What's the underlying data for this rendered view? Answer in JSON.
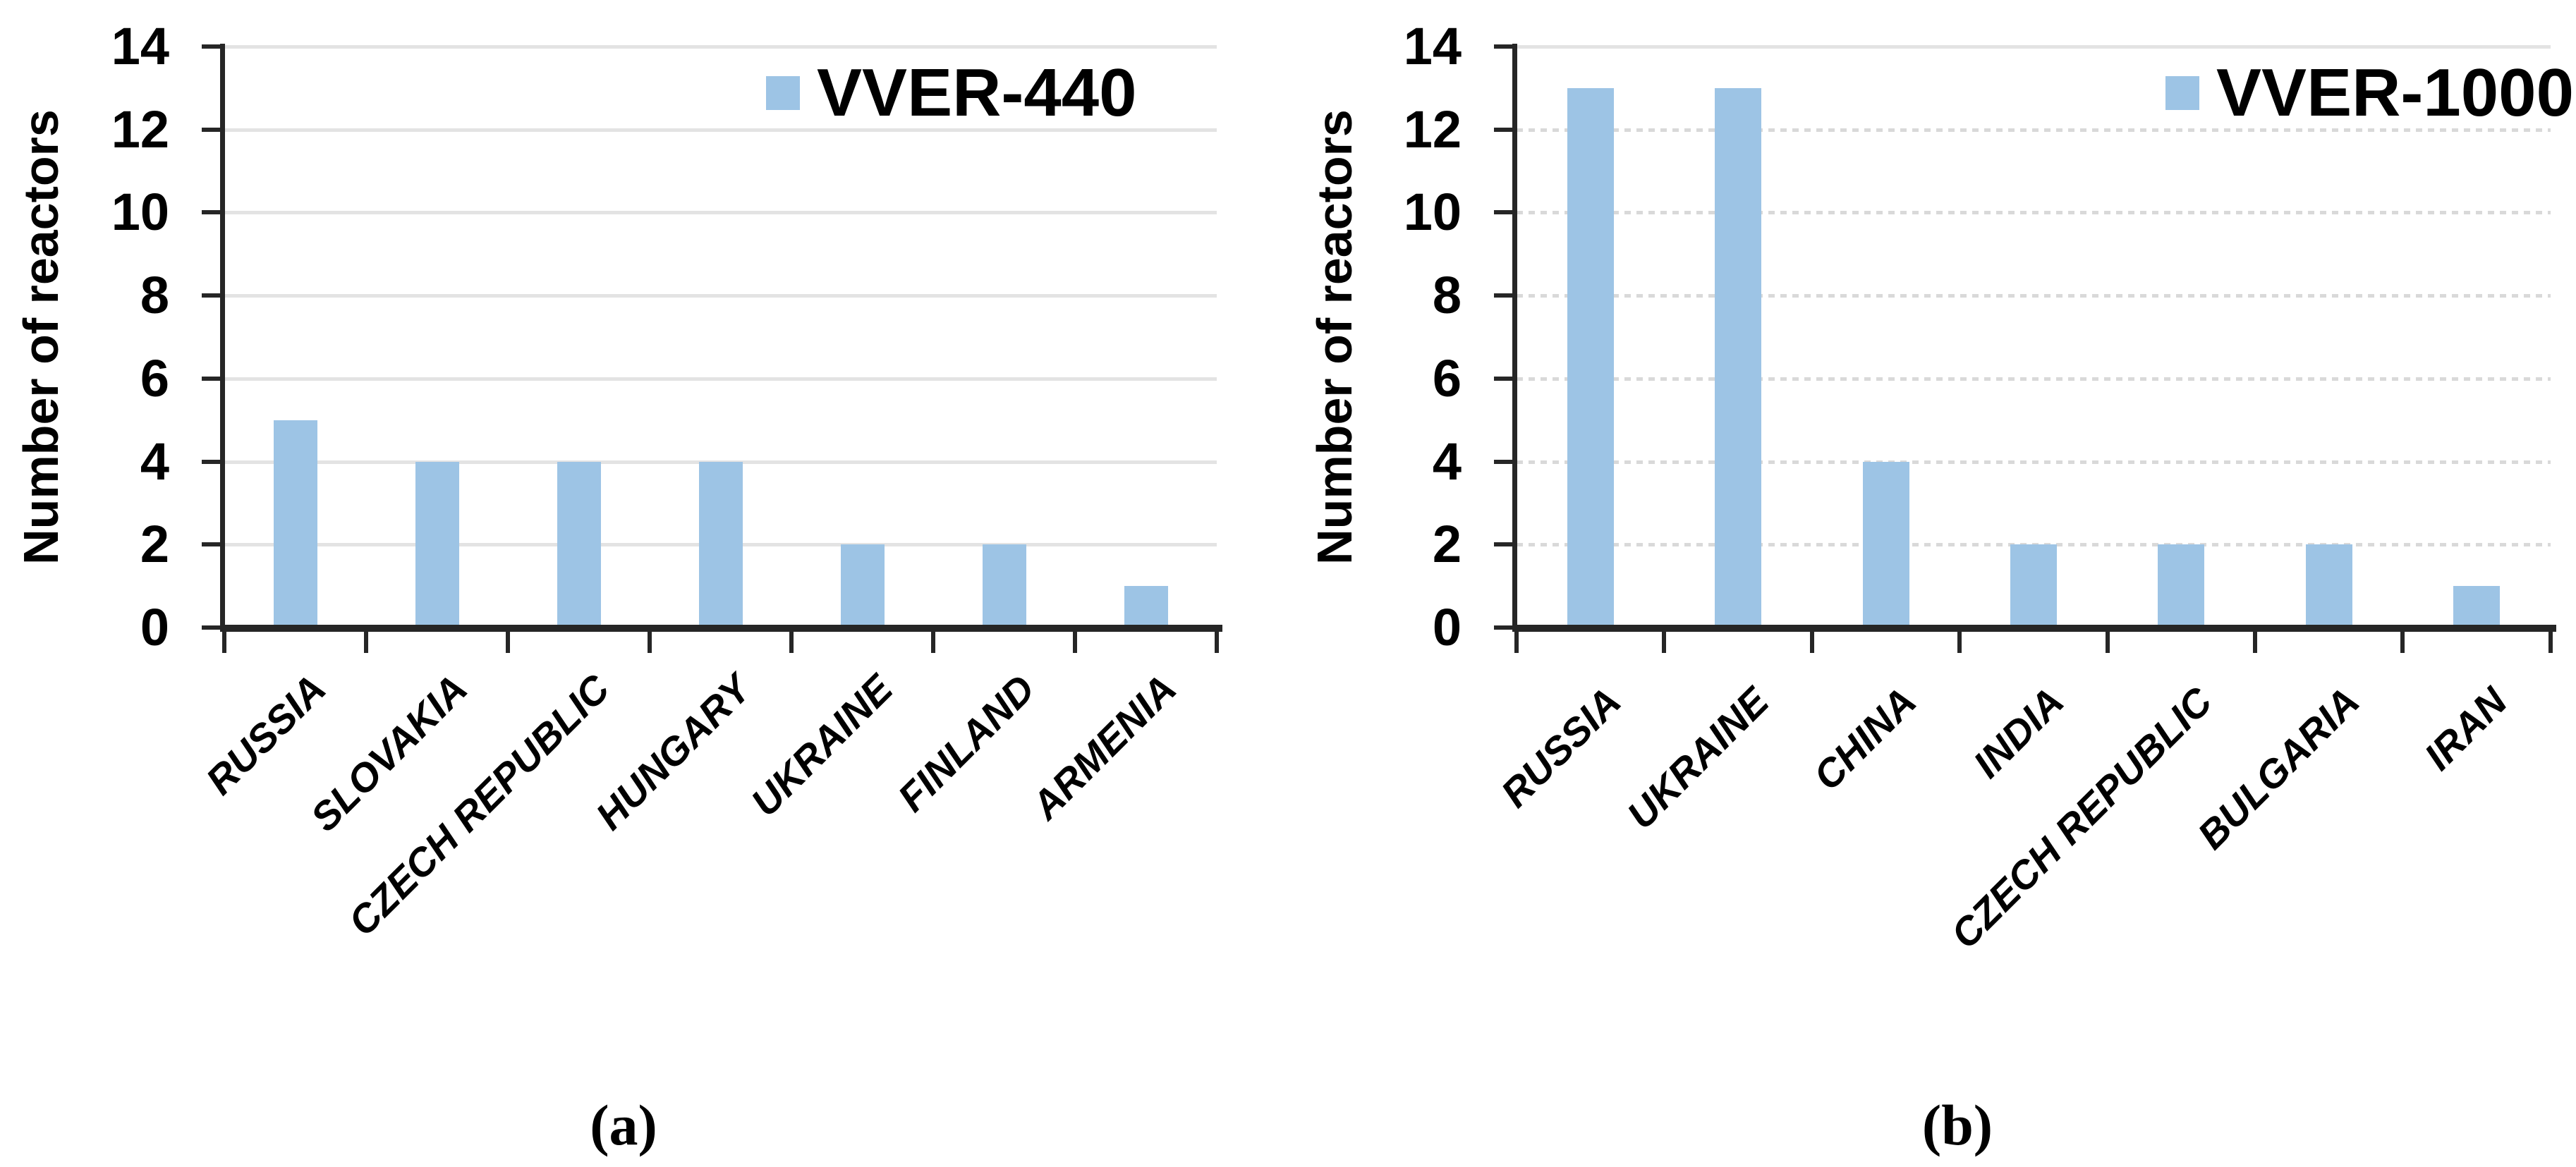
{
  "figure": {
    "panel_labels": {
      "a": "(a)",
      "b": "(b)"
    }
  },
  "colors": {
    "bar_fill": "#9DC4E5",
    "axis_line": "#262626",
    "grid_line": "#E3E3E3",
    "label_text": "#000000"
  },
  "chart_data": [
    {
      "panel": "a",
      "type": "bar",
      "legend": "VVER-440",
      "ylabel": "Number of reactors",
      "categories": [
        "RUSSIA",
        "SLOVAKIA",
        "CZECH REPUBLIC",
        "HUNGARY",
        "UKRAINE",
        "FINLAND",
        "ARMENIA"
      ],
      "values": [
        5,
        4,
        4,
        4,
        2,
        2,
        1
      ],
      "ylim": [
        0,
        14
      ],
      "ytick_step": 2,
      "yticks": [
        0,
        2,
        4,
        6,
        8,
        10,
        12,
        14
      ],
      "grid_style": "solid",
      "grid_on": true,
      "legend_position": "top-right",
      "bar_color": "#9DC4E5"
    },
    {
      "panel": "b",
      "type": "bar",
      "legend": "VVER-1000",
      "ylabel": "Number of reactors",
      "categories": [
        "RUSSIA",
        "UKRAINE",
        "CHINA",
        "INDIA",
        "CZECH REPUBLIC",
        "BULGARIA",
        "IRAN"
      ],
      "values": [
        13,
        13,
        4,
        2,
        2,
        2,
        1
      ],
      "ylim": [
        0,
        14
      ],
      "ytick_step": 2,
      "yticks": [
        0,
        2,
        4,
        6,
        8,
        10,
        12,
        14
      ],
      "grid_style": "dotted",
      "grid_on": true,
      "legend_position": "top-right",
      "bar_color": "#9DC4E5"
    }
  ]
}
